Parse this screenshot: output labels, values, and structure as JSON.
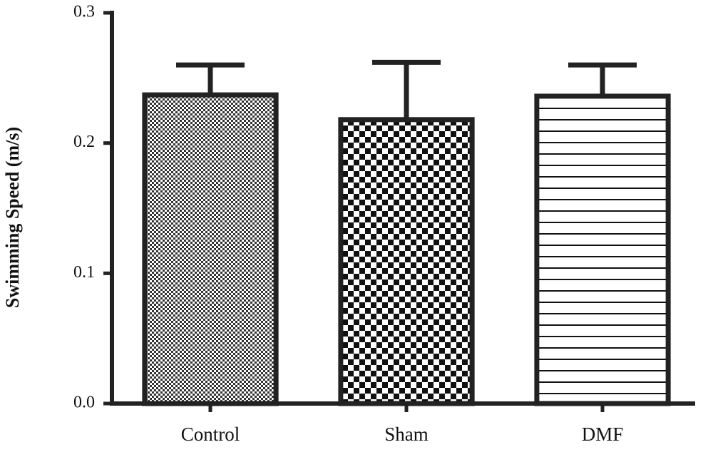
{
  "chart_data": {
    "type": "bar",
    "ylabel": "Swimming Speed (m/s)",
    "categories": [
      "Control",
      "Sham",
      "DMF"
    ],
    "values": [
      0.237,
      0.218,
      0.236
    ],
    "errors": [
      0.023,
      0.044,
      0.024
    ],
    "color": "#222222",
    "ylim": [
      0,
      0.3
    ],
    "yticks": [
      {
        "value": 0,
        "label": "0.0"
      },
      0.1,
      0.2,
      0.3
    ]
  }
}
